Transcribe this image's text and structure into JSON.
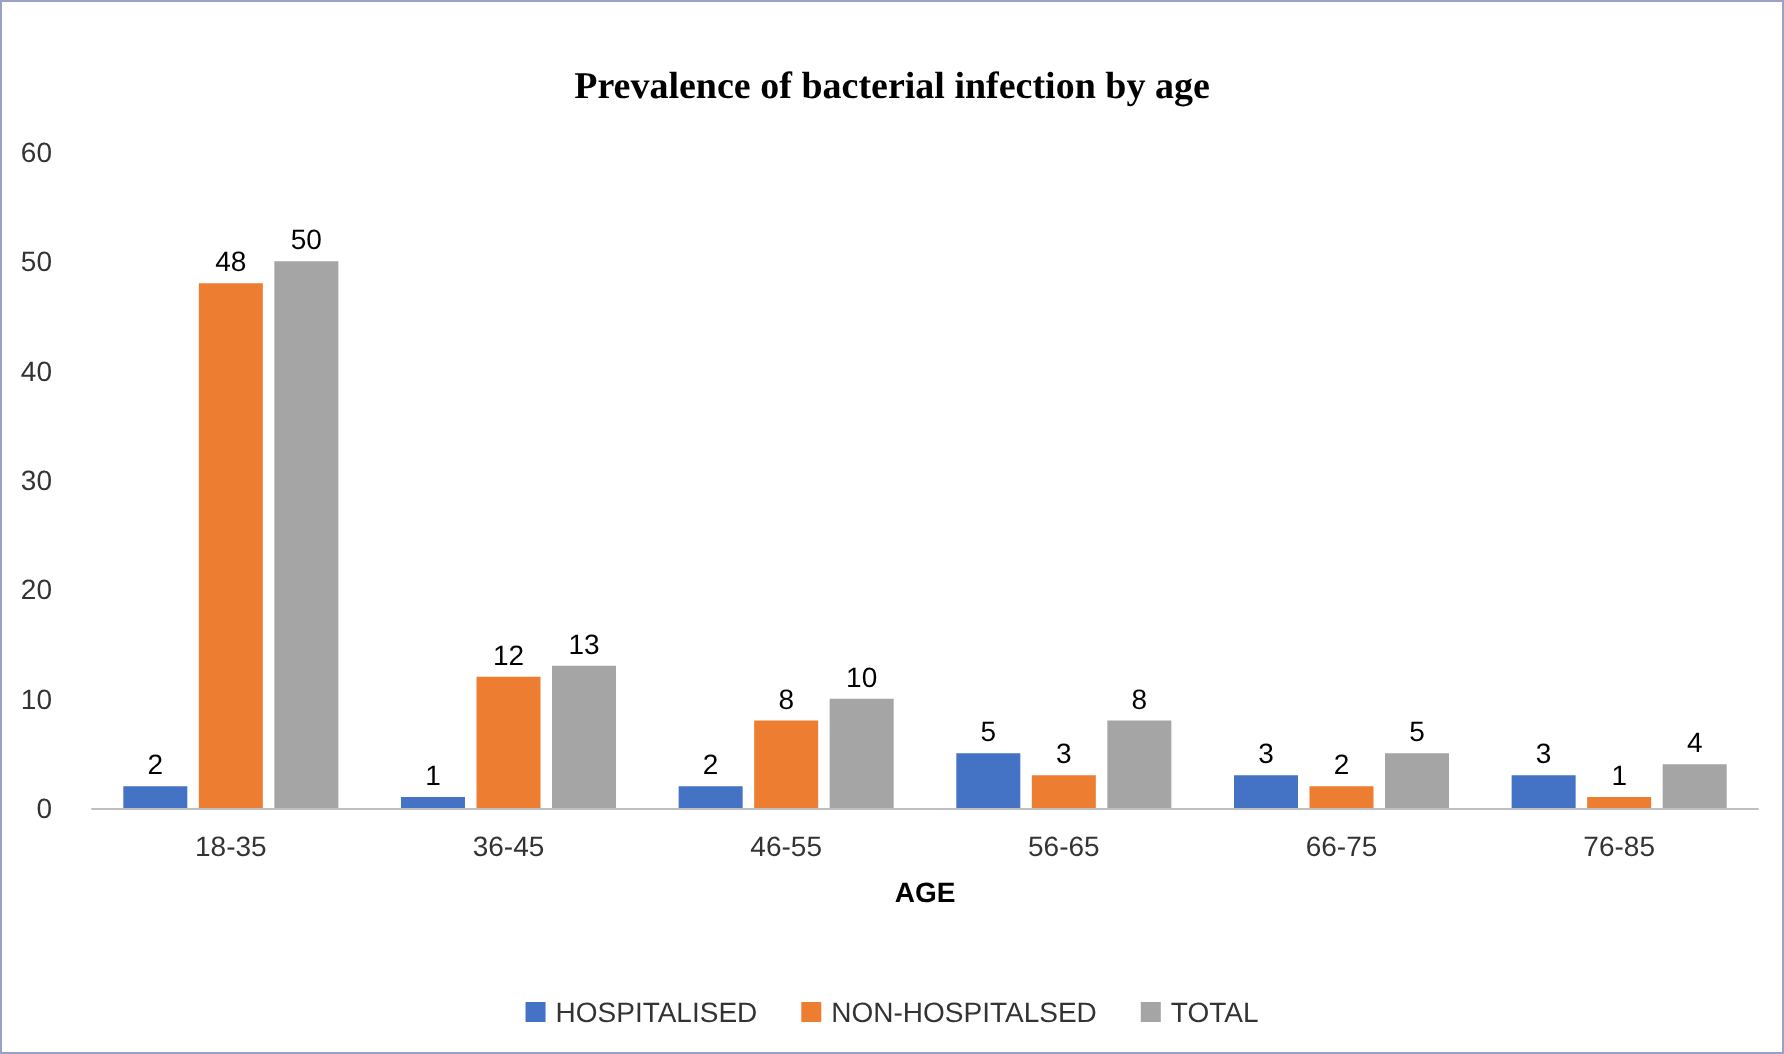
{
  "chart_data": {
    "type": "bar",
    "title": "Prevalence of bacterial infection by age",
    "xlabel": "AGE",
    "categories": [
      "18-35",
      "36-45",
      "46-55",
      "56-65",
      "66-75",
      "76-85"
    ],
    "series": [
      {
        "name": "HOSPITALISED",
        "color": "#4472c4",
        "values": [
          2,
          1,
          2,
          5,
          3,
          3
        ]
      },
      {
        "name": "NON-HOSPITALSED",
        "color": "#ed7d31",
        "values": [
          48,
          12,
          8,
          3,
          2,
          1
        ]
      },
      {
        "name": "TOTAL",
        "color": "#a5a5a5",
        "values": [
          50,
          13,
          10,
          8,
          5,
          4
        ]
      }
    ],
    "ylim": [
      0,
      60
    ],
    "yticks": [
      0,
      10,
      20,
      30,
      40,
      50,
      60
    ],
    "grid": false,
    "legend": "bottom",
    "data_labels": true
  }
}
